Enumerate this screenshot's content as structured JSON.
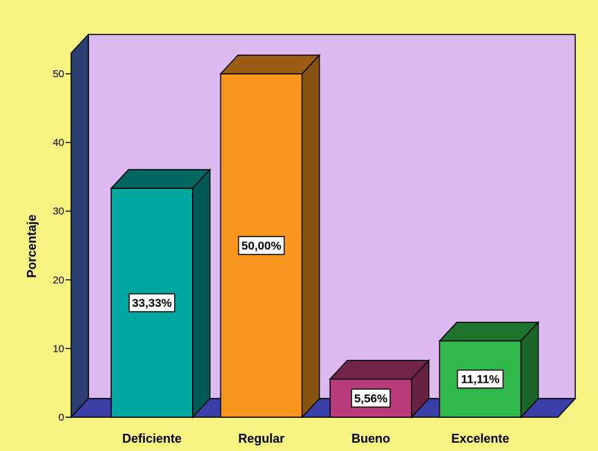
{
  "colors": {
    "background": "#F8F482",
    "plot_back": "#DDB9F2",
    "left_wall": "#2B3F73",
    "floor": "#3A40A8"
  },
  "chart_data": {
    "type": "bar",
    "title": "",
    "xlabel": "",
    "ylabel": "Porcentaje",
    "ylim": [
      0,
      50
    ],
    "yticks": [
      0,
      10,
      20,
      30,
      40,
      50
    ],
    "categories": [
      "Deficiente",
      "Regular",
      "Bueno",
      "Excelente"
    ],
    "values": [
      33.33,
      50.0,
      5.56,
      11.11
    ],
    "data_labels": [
      "33,33%",
      "50,00%",
      "5,56%",
      "11,11%"
    ],
    "bar_colors": [
      "#00A6A0",
      "#F8961E",
      "#BB3C7A",
      "#30B94B"
    ],
    "grid": false,
    "legend": "none",
    "style": "3d"
  }
}
